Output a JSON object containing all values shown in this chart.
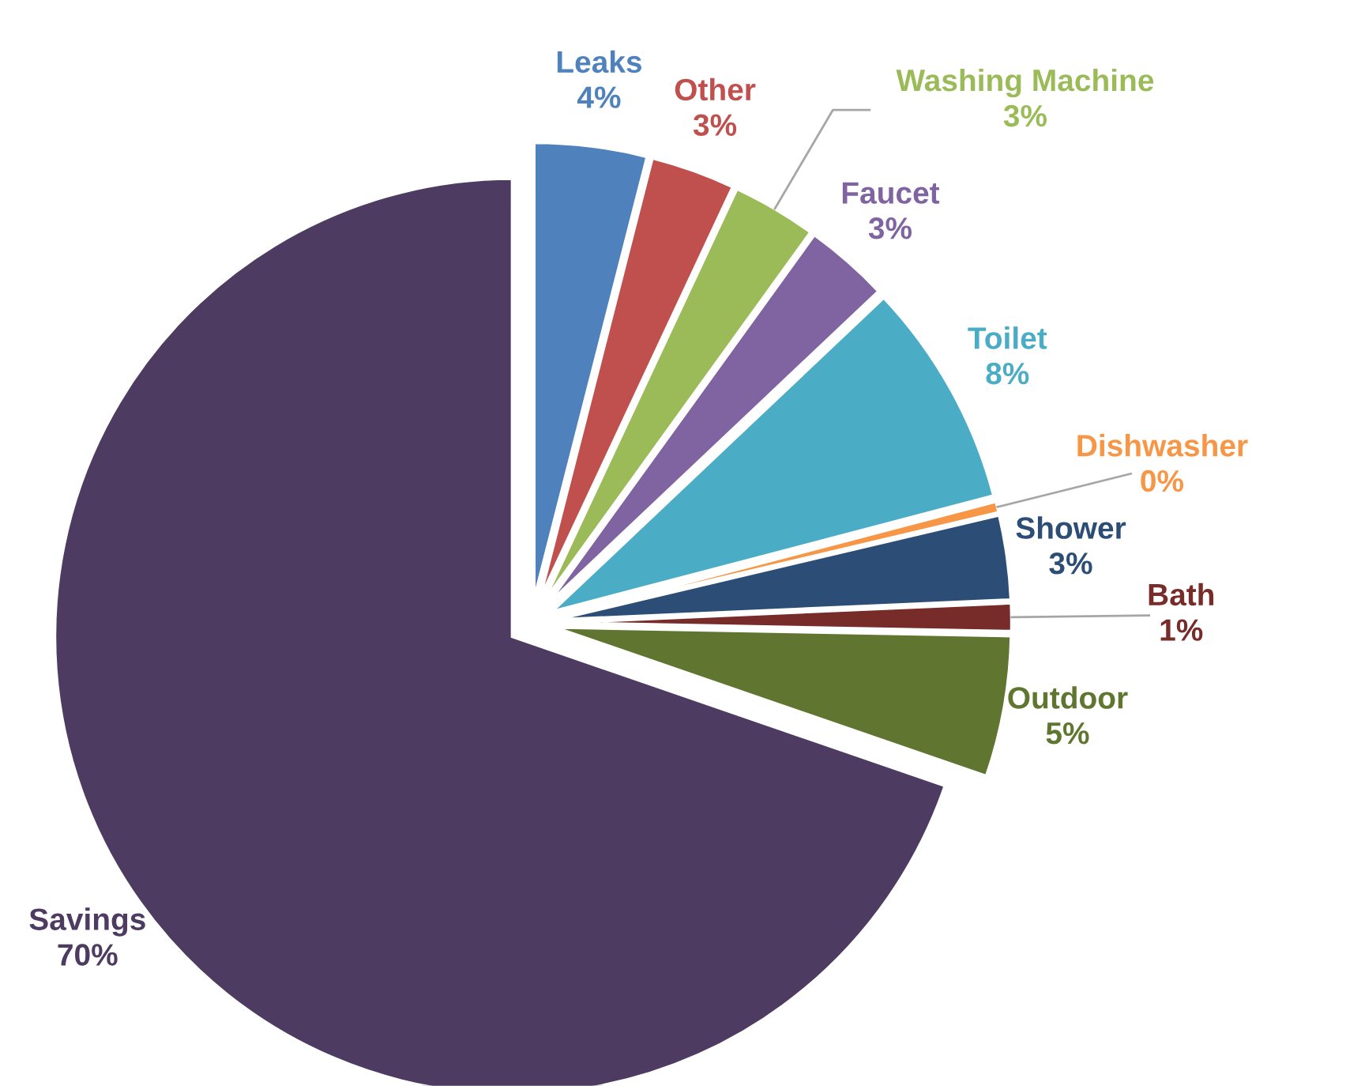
{
  "chart_data": {
    "type": "pie",
    "categories": [
      "Leaks",
      "Other",
      "Washing Machine",
      "Faucet",
      "Toilet",
      "Dishwasher",
      "Shower",
      "Bath",
      "Outdoor",
      "Savings"
    ],
    "values": [
      4,
      3,
      3,
      3,
      8,
      0.4,
      3,
      1,
      5,
      70
    ],
    "value_labels": [
      "4%",
      "3%",
      "3%",
      "3%",
      "8%",
      "0%",
      "3%",
      "1%",
      "5%",
      "70%"
    ],
    "colors": [
      "#4f81bd",
      "#c0504d",
      "#9bbb59",
      "#8064a2",
      "#4bacc6",
      "#f79646",
      "#2c4d75",
      "#772c2a",
      "#5f7530",
      "#4d3b62"
    ]
  }
}
